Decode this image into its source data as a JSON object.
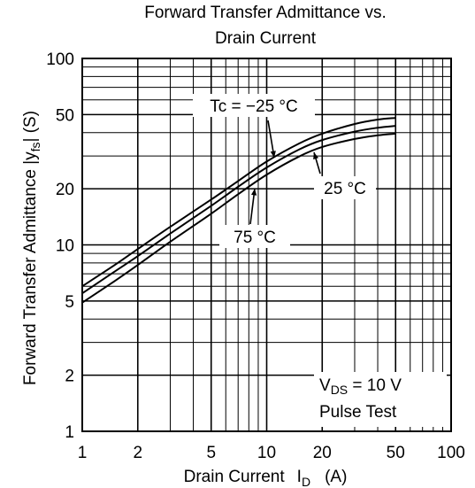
{
  "chart_data": {
    "type": "line",
    "title_line1": "Forward Transfer Admittance vs.",
    "title_line2": "Drain Current",
    "xlabel": "Drain Current",
    "xlabel_symbol": "I",
    "xlabel_subscript": "D",
    "xlabel_unit": "(A)",
    "ylabel": "Forward Transfer Admittance |y",
    "ylabel_subscript": "fs",
    "ylabel_unit": "| (S)",
    "x_scale": "log",
    "y_scale": "log",
    "xlim": [
      1,
      100
    ],
    "ylim": [
      1,
      100
    ],
    "grid": true,
    "x_ticks": [
      {
        "value": 1,
        "label": "1"
      },
      {
        "value": 2,
        "label": "2"
      },
      {
        "value": 5,
        "label": "5"
      },
      {
        "value": 10,
        "label": "10"
      },
      {
        "value": 20,
        "label": "20"
      },
      {
        "value": 50,
        "label": "50"
      },
      {
        "value": 100,
        "label": "100"
      }
    ],
    "y_ticks": [
      {
        "value": 1,
        "label": "1"
      },
      {
        "value": 2,
        "label": "2"
      },
      {
        "value": 5,
        "label": "5"
      },
      {
        "value": 10,
        "label": "10"
      },
      {
        "value": 20,
        "label": "20"
      },
      {
        "value": 50,
        "label": "50"
      },
      {
        "value": 100,
        "label": "100"
      }
    ],
    "series": [
      {
        "name": "Tc = −25 °C",
        "x": [
          1,
          1.5,
          2,
          3,
          5,
          7,
          10,
          15,
          20,
          30,
          40,
          50
        ],
        "y": [
          6.0,
          7.8,
          9.5,
          12.5,
          17.5,
          22.0,
          28.0,
          35.0,
          39.5,
          44.5,
          47.0,
          48.0
        ]
      },
      {
        "name": "25 °C",
        "x": [
          1,
          1.5,
          2,
          3,
          5,
          7,
          10,
          15,
          20,
          30,
          40,
          50
        ],
        "y": [
          5.5,
          7.2,
          8.7,
          11.5,
          16.2,
          20.5,
          26.0,
          32.5,
          36.5,
          40.5,
          42.5,
          43.5
        ]
      },
      {
        "name": "75 °C",
        "x": [
          1,
          1.5,
          2,
          3,
          5,
          7,
          10,
          15,
          20,
          30,
          40,
          50
        ],
        "y": [
          4.9,
          6.4,
          7.8,
          10.4,
          14.7,
          18.7,
          23.8,
          29.8,
          33.5,
          37.0,
          38.7,
          39.5
        ]
      }
    ],
    "annotations": {
      "tc_label": "Tc = −25 °C",
      "label_25": "25 °C",
      "label_75": "75 °C",
      "condition_line1": "V",
      "condition_line1_sub": "DS",
      "condition_line1_rest": " = 10 V",
      "condition_line2": "Pulse Test"
    }
  }
}
